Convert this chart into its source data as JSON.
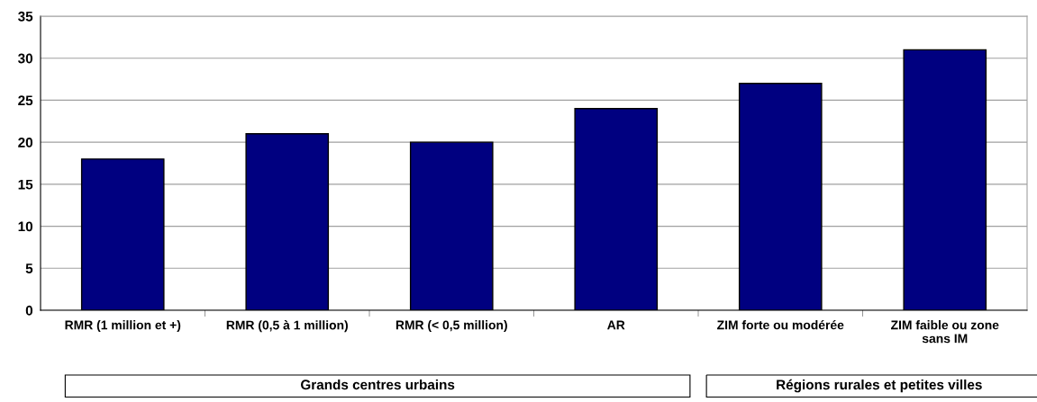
{
  "chart_data": {
    "type": "bar",
    "categories": [
      "RMR (1 million et +)",
      "RMR (0,5 à 1 million)",
      "RMR (< 0,5 million)",
      "AR",
      "ZIM forte ou modérée",
      "ZIM faible ou zone\nsans IM"
    ],
    "values": [
      18,
      21,
      20,
      24,
      27,
      31
    ],
    "color": "#000080",
    "ylim": [
      0,
      35
    ],
    "yticks": [
      0,
      5,
      10,
      15,
      20,
      25,
      30,
      35
    ],
    "grid": "y",
    "annotations": [
      "Grands centres urbains",
      "Régions rurales et petites villes"
    ]
  }
}
